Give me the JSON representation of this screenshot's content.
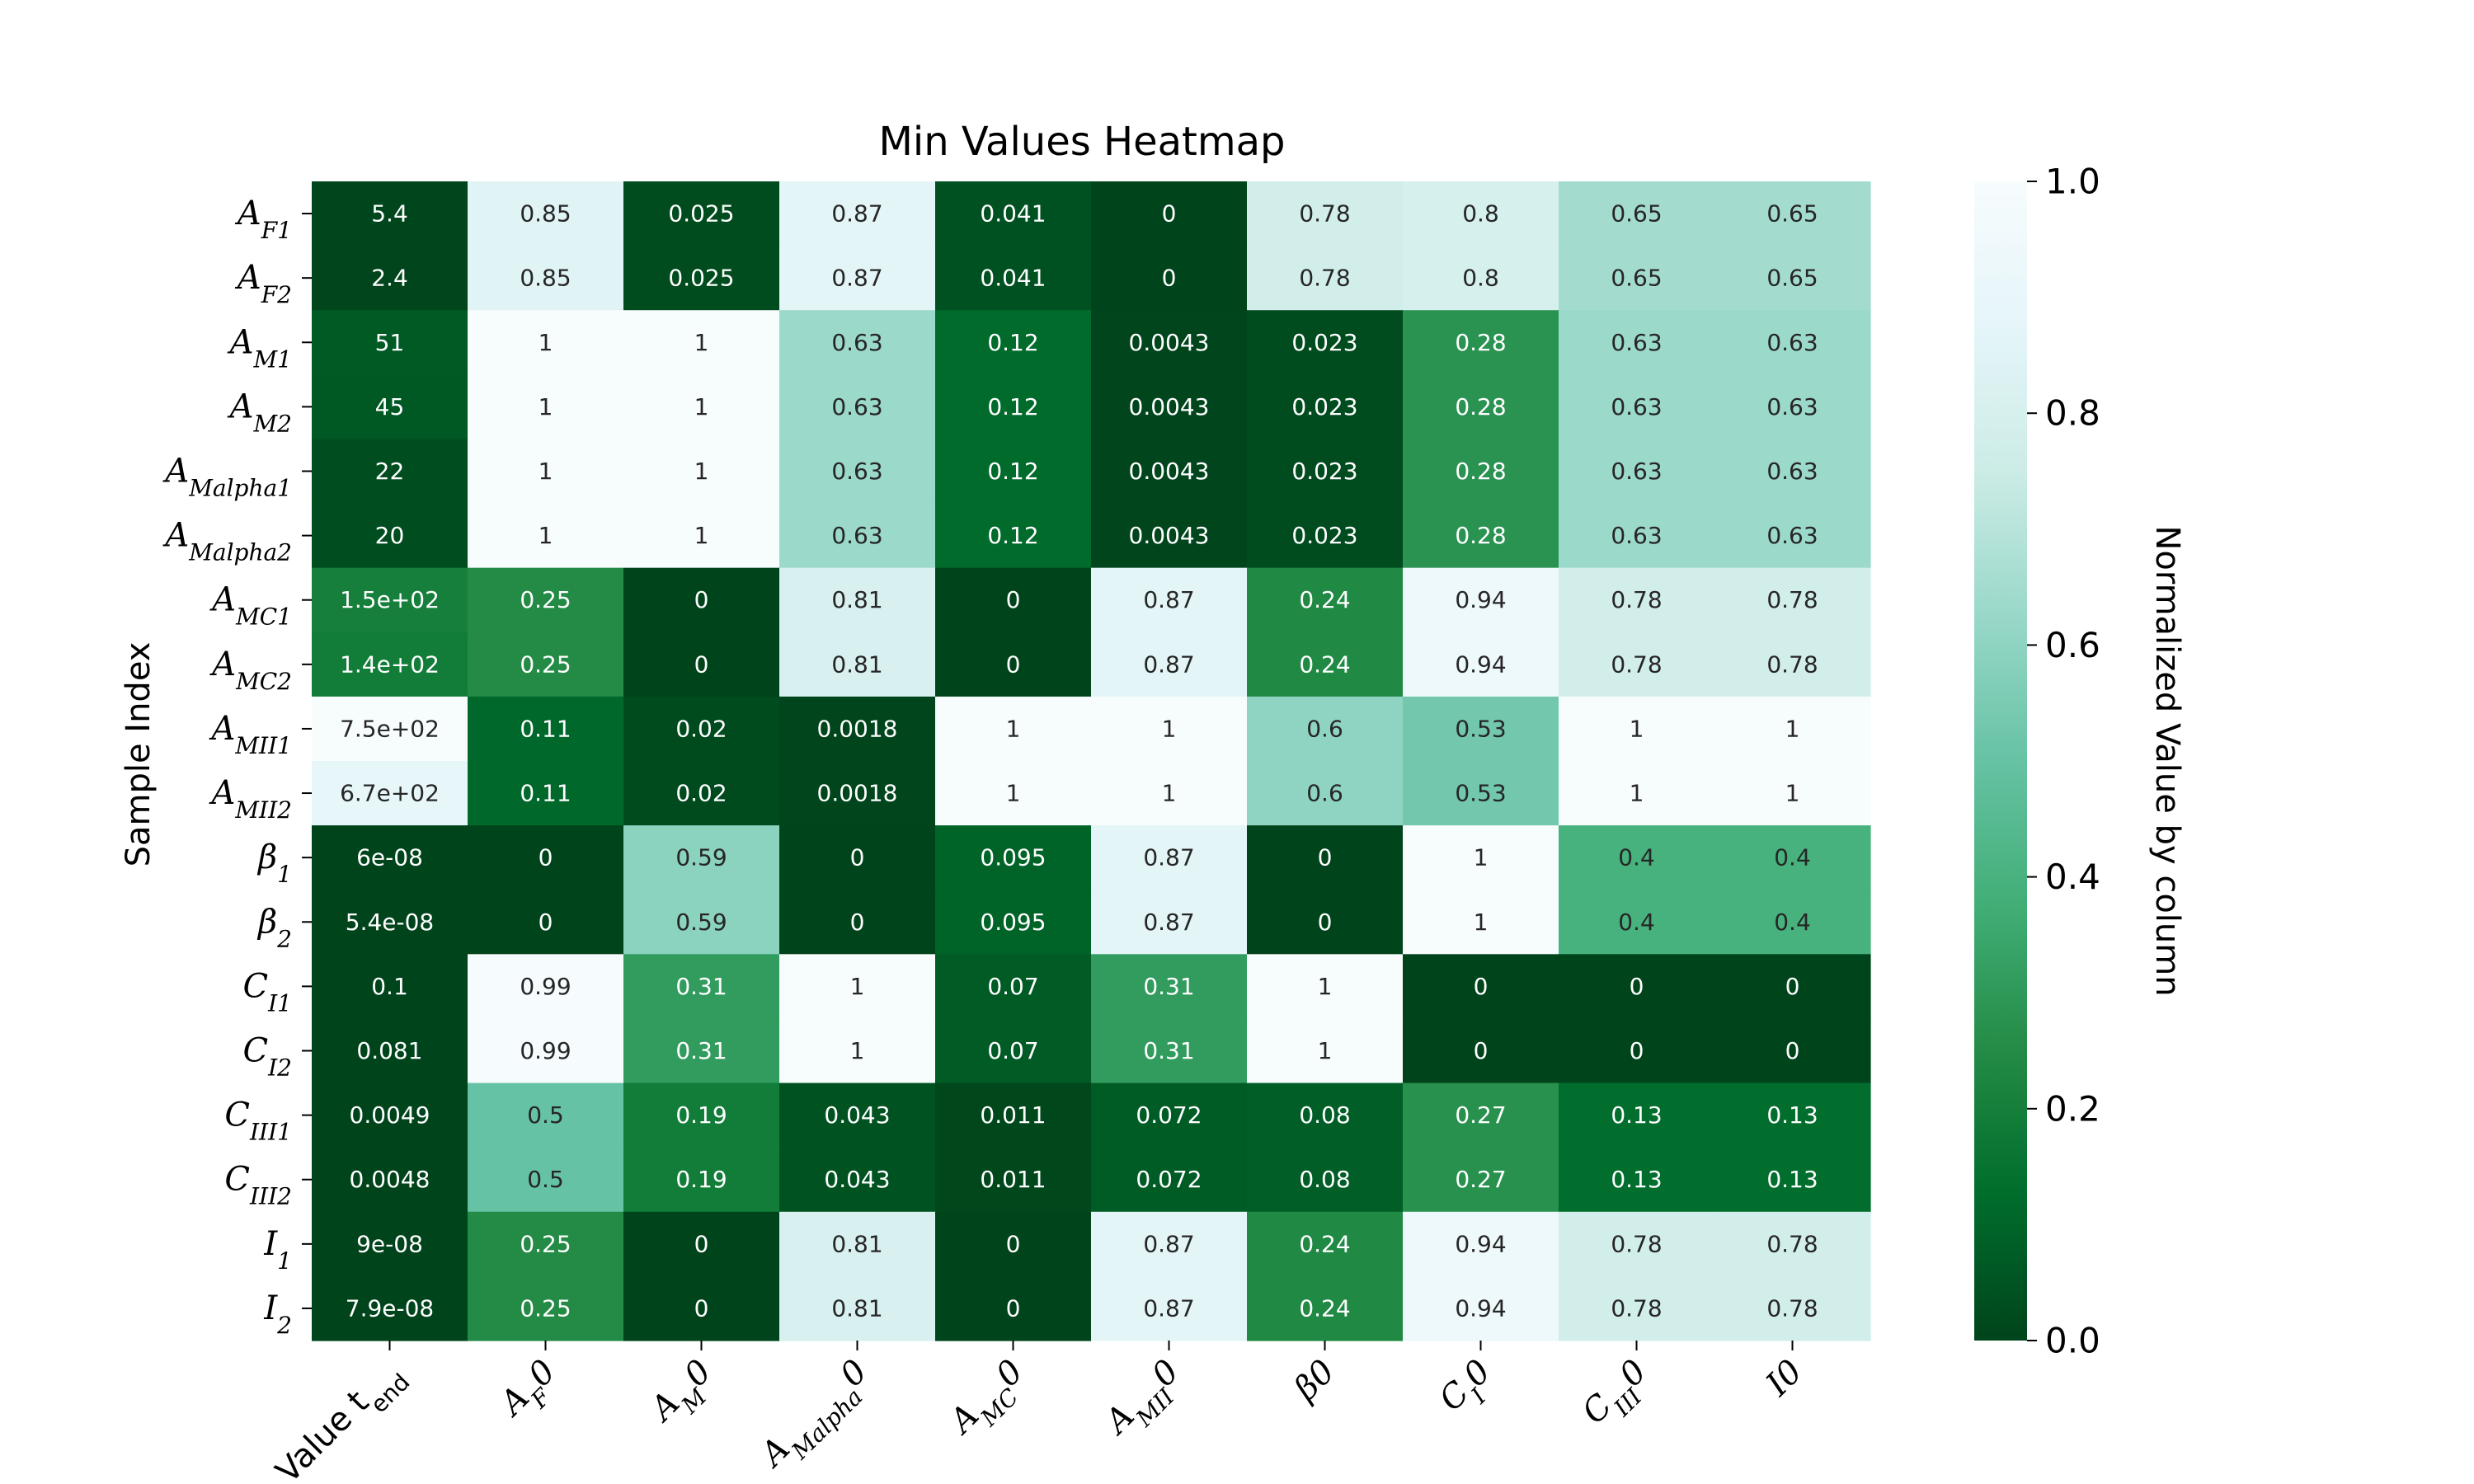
{
  "chart_data": {
    "type": "heatmap",
    "title": "Min Values Heatmap",
    "xlabel": "",
    "ylabel": "Sample Index",
    "colorbar_label": "Normalized Value by column",
    "colormap": [
      "#00441b",
      "#006d2c",
      "#238b45",
      "#41ae76",
      "#66c2a4",
      "#99d8c9",
      "#ccece6",
      "#e5f5f9",
      "#f7fcfd"
    ],
    "value_range": [
      0,
      1
    ],
    "colorbar_ticks": [
      "0.0",
      "0.2",
      "0.4",
      "0.6",
      "0.8",
      "1.0"
    ],
    "columns": [
      {
        "base": "Value t",
        "sub": "end",
        "suffix": ""
      },
      {
        "base": "A",
        "sub": "F",
        "suffix": "0"
      },
      {
        "base": "A",
        "sub": "M",
        "suffix": "0"
      },
      {
        "base": "A",
        "sub": "Malpha",
        "suffix": "0"
      },
      {
        "base": "A",
        "sub": "MC",
        "suffix": "0"
      },
      {
        "base": "A",
        "sub": "MII",
        "suffix": "0"
      },
      {
        "base": "β",
        "sub": "",
        "suffix": "0"
      },
      {
        "base": "C",
        "sub": "I",
        "suffix": "0"
      },
      {
        "base": "C",
        "sub": "III",
        "suffix": "0"
      },
      {
        "base": "I",
        "sub": "",
        "suffix": "0"
      }
    ],
    "rows": [
      {
        "base": "A",
        "sub": "F1"
      },
      {
        "base": "A",
        "sub": "F2"
      },
      {
        "base": "A",
        "sub": "M1"
      },
      {
        "base": "A",
        "sub": "M2"
      },
      {
        "base": "A",
        "sub": "Malpha1"
      },
      {
        "base": "A",
        "sub": "Malpha2"
      },
      {
        "base": "A",
        "sub": "MC1"
      },
      {
        "base": "A",
        "sub": "MC2"
      },
      {
        "base": "A",
        "sub": "MII1"
      },
      {
        "base": "A",
        "sub": "MII2"
      },
      {
        "base": "β",
        "sub": "1"
      },
      {
        "base": "β",
        "sub": "2"
      },
      {
        "base": "C",
        "sub": "I1"
      },
      {
        "base": "C",
        "sub": "I2"
      },
      {
        "base": "C",
        "sub": "III1"
      },
      {
        "base": "C",
        "sub": "III2"
      },
      {
        "base": "I",
        "sub": "1"
      },
      {
        "base": "I",
        "sub": "2"
      }
    ],
    "normalized_values": [
      [
        0.0073,
        0.85,
        0.025,
        0.87,
        0.041,
        0,
        0.78,
        0.8,
        0.65,
        0.65
      ],
      [
        0.0032,
        0.85,
        0.025,
        0.87,
        0.041,
        0,
        0.78,
        0.8,
        0.65,
        0.65
      ],
      [
        0.068,
        1,
        1,
        0.63,
        0.12,
        0.0043,
        0.023,
        0.28,
        0.63,
        0.63
      ],
      [
        0.06,
        1,
        1,
        0.63,
        0.12,
        0.0043,
        0.023,
        0.28,
        0.63,
        0.63
      ],
      [
        0.029,
        1,
        1,
        0.63,
        0.12,
        0.0043,
        0.023,
        0.28,
        0.63,
        0.63
      ],
      [
        0.027,
        1,
        1,
        0.63,
        0.12,
        0.0043,
        0.023,
        0.28,
        0.63,
        0.63
      ],
      [
        0.2,
        0.25,
        0,
        0.81,
        0,
        0.87,
        0.24,
        0.94,
        0.78,
        0.78
      ],
      [
        0.19,
        0.25,
        0,
        0.81,
        0,
        0.87,
        0.24,
        0.94,
        0.78,
        0.78
      ],
      [
        1,
        0.11,
        0.02,
        0.0018,
        1,
        1,
        0.6,
        0.53,
        1,
        1
      ],
      [
        0.89,
        0.11,
        0.02,
        0.0018,
        1,
        1,
        0.6,
        0.53,
        1,
        1
      ],
      [
        0,
        0,
        0.59,
        0,
        0.095,
        0.87,
        0,
        1,
        0.4,
        0.4
      ],
      [
        0,
        0,
        0.59,
        0,
        0.095,
        0.87,
        0,
        1,
        0.4,
        0.4
      ],
      [
        0.00013,
        0.99,
        0.31,
        1,
        0.07,
        0.31,
        1,
        0,
        0,
        0
      ],
      [
        0.00011,
        0.99,
        0.31,
        1,
        0.07,
        0.31,
        1,
        0,
        0,
        0
      ],
      [
        6.5e-06,
        0.5,
        0.19,
        0.043,
        0.011,
        0.072,
        0.08,
        0.27,
        0.13,
        0.13
      ],
      [
        6.4e-06,
        0.5,
        0.19,
        0.043,
        0.011,
        0.072,
        0.08,
        0.27,
        0.13,
        0.13
      ],
      [
        0,
        0.25,
        0,
        0.81,
        0,
        0.87,
        0.24,
        0.94,
        0.78,
        0.78
      ],
      [
        0,
        0.25,
        0,
        0.81,
        0,
        0.87,
        0.24,
        0.94,
        0.78,
        0.78
      ]
    ],
    "annotations": [
      [
        "5.4",
        "0.85",
        "0.025",
        "0.87",
        "0.041",
        "0",
        "0.78",
        "0.8",
        "0.65",
        "0.65"
      ],
      [
        "2.4",
        "0.85",
        "0.025",
        "0.87",
        "0.041",
        "0",
        "0.78",
        "0.8",
        "0.65",
        "0.65"
      ],
      [
        "51",
        "1",
        "1",
        "0.63",
        "0.12",
        "0.0043",
        "0.023",
        "0.28",
        "0.63",
        "0.63"
      ],
      [
        "45",
        "1",
        "1",
        "0.63",
        "0.12",
        "0.0043",
        "0.023",
        "0.28",
        "0.63",
        "0.63"
      ],
      [
        "22",
        "1",
        "1",
        "0.63",
        "0.12",
        "0.0043",
        "0.023",
        "0.28",
        "0.63",
        "0.63"
      ],
      [
        "20",
        "1",
        "1",
        "0.63",
        "0.12",
        "0.0043",
        "0.023",
        "0.28",
        "0.63",
        "0.63"
      ],
      [
        "1.5e+02",
        "0.25",
        "0",
        "0.81",
        "0",
        "0.87",
        "0.24",
        "0.94",
        "0.78",
        "0.78"
      ],
      [
        "1.4e+02",
        "0.25",
        "0",
        "0.81",
        "0",
        "0.87",
        "0.24",
        "0.94",
        "0.78",
        "0.78"
      ],
      [
        "7.5e+02",
        "0.11",
        "0.02",
        "0.0018",
        "1",
        "1",
        "0.6",
        "0.53",
        "1",
        "1"
      ],
      [
        "6.7e+02",
        "0.11",
        "0.02",
        "0.0018",
        "1",
        "1",
        "0.6",
        "0.53",
        "1",
        "1"
      ],
      [
        "6e-08",
        "0",
        "0.59",
        "0",
        "0.095",
        "0.87",
        "0",
        "1",
        "0.4",
        "0.4"
      ],
      [
        "5.4e-08",
        "0",
        "0.59",
        "0",
        "0.095",
        "0.87",
        "0",
        "1",
        "0.4",
        "0.4"
      ],
      [
        "0.1",
        "0.99",
        "0.31",
        "1",
        "0.07",
        "0.31",
        "1",
        "0",
        "0",
        "0"
      ],
      [
        "0.081",
        "0.99",
        "0.31",
        "1",
        "0.07",
        "0.31",
        "1",
        "0",
        "0",
        "0"
      ],
      [
        "0.0049",
        "0.5",
        "0.19",
        "0.043",
        "0.011",
        "0.072",
        "0.08",
        "0.27",
        "0.13",
        "0.13"
      ],
      [
        "0.0048",
        "0.5",
        "0.19",
        "0.043",
        "0.011",
        "0.072",
        "0.08",
        "0.27",
        "0.13",
        "0.13"
      ],
      [
        "9e-08",
        "0.25",
        "0",
        "0.81",
        "0",
        "0.87",
        "0.24",
        "0.94",
        "0.78",
        "0.78"
      ],
      [
        "7.9e-08",
        "0.25",
        "0",
        "0.81",
        "0",
        "0.87",
        "0.24",
        "0.94",
        "0.78",
        "0.78"
      ]
    ]
  }
}
